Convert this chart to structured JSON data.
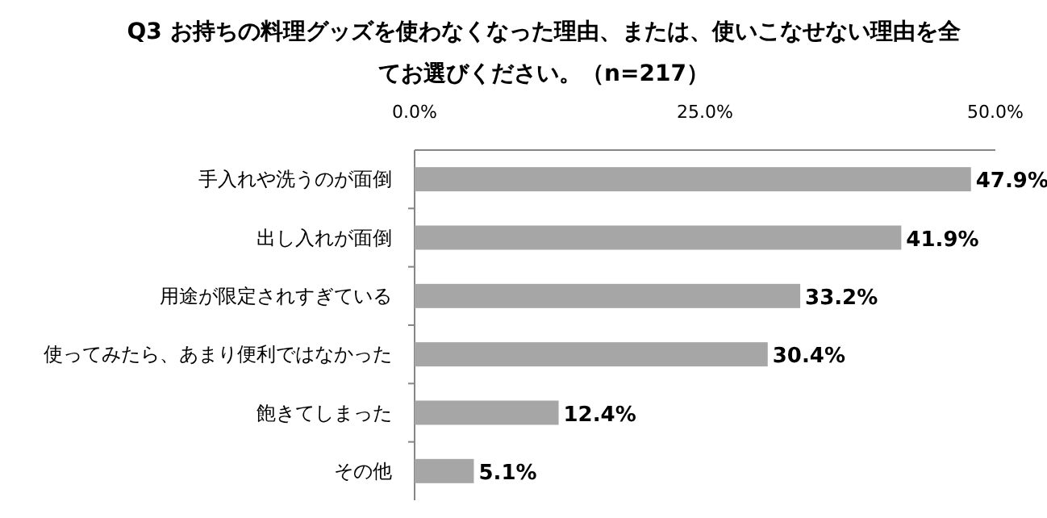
{
  "chart_data": {
    "type": "bar",
    "orientation": "horizontal",
    "title": "Q3 お持ちの料理グッズを使わなくなった理由、または、使いこなせない理由を全てお選びください。（n=217）",
    "categories": [
      "手入れや洗うのが面倒",
      "出し入れが面倒",
      "用途が限定されすぎている",
      "使ってみたら、あまり便利ではなかった",
      "飽きてしまった",
      "その他"
    ],
    "values": [
      47.9,
      41.9,
      33.2,
      30.4,
      12.4,
      5.1
    ],
    "value_labels": [
      "47.9%",
      "41.9%",
      "33.2%",
      "30.4%",
      "12.4%",
      "5.1%"
    ],
    "color": "#a6a6a6",
    "xlim": [
      0,
      50
    ],
    "xticks": [
      {
        "value": 0,
        "label": "0.0%"
      },
      {
        "value": 25,
        "label": "25.0%"
      },
      {
        "value": 50,
        "label": "50.0%"
      }
    ],
    "grid": false
  }
}
